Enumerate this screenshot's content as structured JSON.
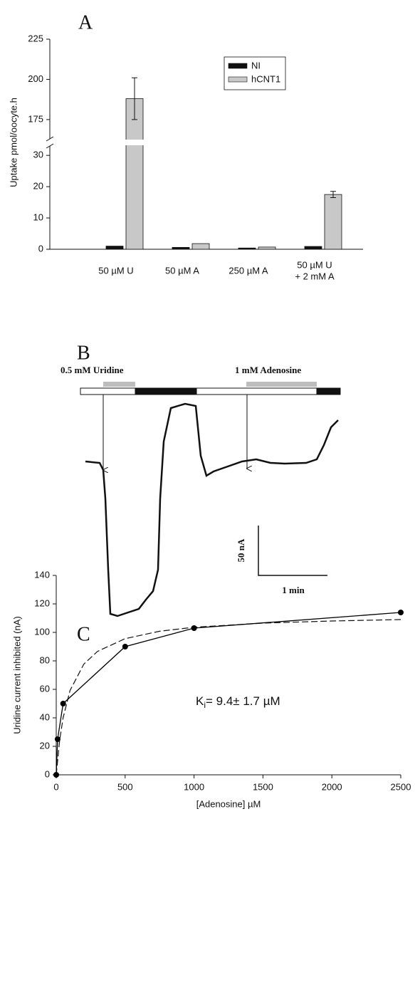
{
  "chart_data": [
    {
      "type": "bar",
      "panel_label": "A",
      "ylabel": "Uptake pmol/oocyte.h",
      "categories": [
        "50 µM U",
        "50 µM A",
        "250 µM A",
        [
          "50 µM  U",
          "+  2 mM A"
        ]
      ],
      "series": [
        {
          "name": "NI",
          "color": "#111111",
          "values": [
            1,
            0.6,
            0.4,
            0.9
          ]
        },
        {
          "name": "hCNT1",
          "color": "#c8c8c8",
          "values": [
            188,
            1.8,
            0.7,
            17.5
          ],
          "errors": [
            13,
            null,
            null,
            1
          ]
        }
      ],
      "ylim": [
        0,
        225
      ],
      "ybreak": [
        33,
        163
      ],
      "yticks": [
        0,
        10,
        20,
        30,
        175,
        200,
        225
      ],
      "legend": "upper right"
    },
    {
      "type": "trace",
      "panel_label": "B",
      "labels": [
        "0.5 mM Uridine",
        "1 mM Adenosine"
      ],
      "scale_y": "50 nA",
      "scale_x": "1 min"
    },
    {
      "type": "line",
      "panel_label": "C",
      "xlabel": "[Adenosine] µM",
      "ylabel": "Uridine current inhibited (nA)",
      "x": [
        0,
        10,
        50,
        500,
        1000,
        2500
      ],
      "values": [
        0,
        25,
        50,
        90,
        103,
        114
      ],
      "color": "#000000",
      "fit": {
        "x": [
          0,
          25,
          50,
          100,
          200,
          300,
          500,
          750,
          1000,
          1500,
          2000,
          2500
        ],
        "values": [
          0,
          24.4,
          40.1,
          59.2,
          77.7,
          86.7,
          95.6,
          100.8,
          103.6,
          106.5,
          108.0,
          109.0
        ]
      },
      "annotation": {
        "main": "K",
        "sub": "i",
        "rest": "= 9.4± 1.7 µM"
      },
      "xlim": [
        0,
        2500
      ],
      "xticks": [
        0,
        500,
        1000,
        1500,
        2000,
        2500
      ],
      "ylim": [
        0,
        140
      ],
      "yticks": [
        0,
        20,
        40,
        60,
        80,
        100,
        120,
        140
      ]
    }
  ]
}
